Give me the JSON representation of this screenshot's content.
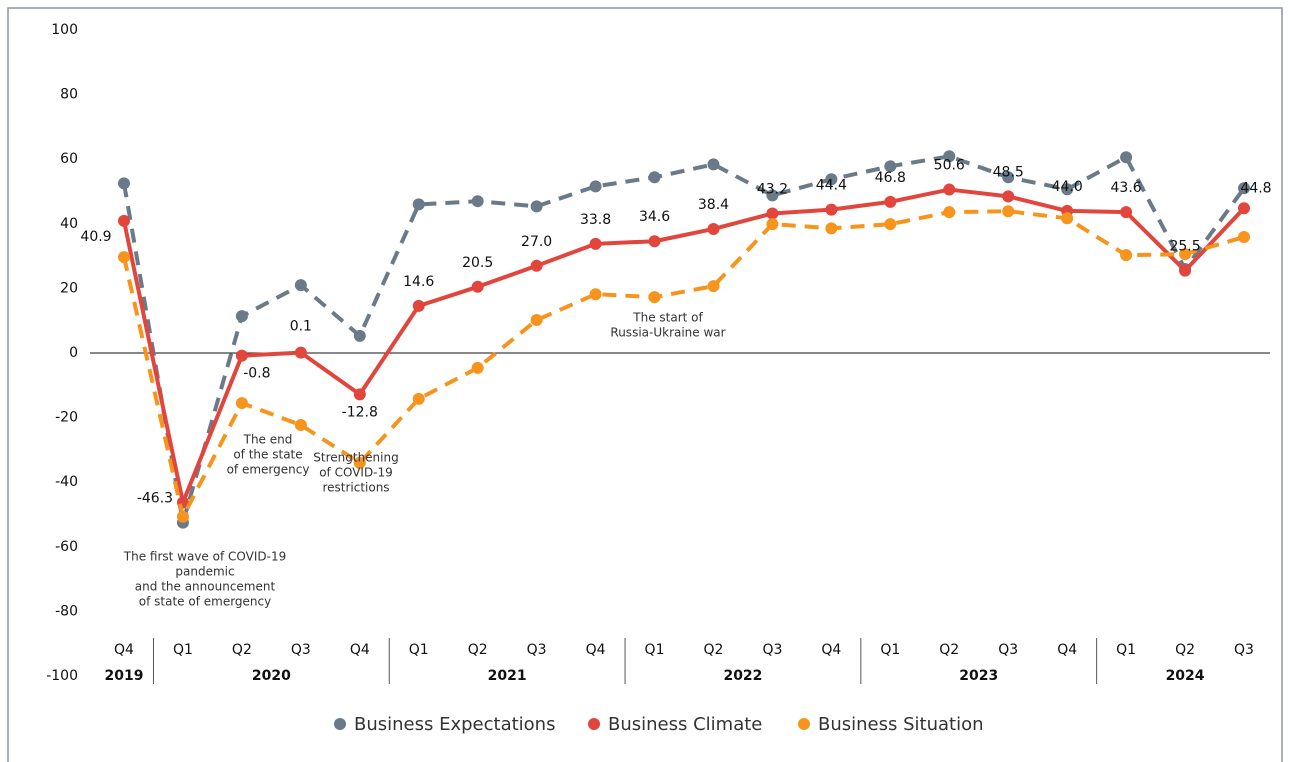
{
  "chart_data": {
    "type": "line",
    "categories": [
      "Q4",
      "Q1",
      "Q2",
      "Q3",
      "Q4",
      "Q1",
      "Q2",
      "Q3",
      "Q4",
      "Q1",
      "Q2",
      "Q3",
      "Q4",
      "Q1",
      "Q2",
      "Q3",
      "Q4",
      "Q1",
      "Q2",
      "Q3"
    ],
    "groups": [
      {
        "name": "2019",
        "count": 1
      },
      {
        "name": "2020",
        "count": 4
      },
      {
        "name": "2021",
        "count": 4
      },
      {
        "name": "2022",
        "count": 4
      },
      {
        "name": "2023",
        "count": 4
      },
      {
        "name": "2024",
        "count": 3
      }
    ],
    "ylim": [
      -100,
      100
    ],
    "yticks": [
      -100,
      -80,
      -60,
      -40,
      -20,
      0,
      20,
      40,
      60,
      80,
      100
    ],
    "series": [
      {
        "name": "Business Expectations",
        "color": "#6b7a89",
        "dashed": true,
        "values": [
          52.5,
          -52.5,
          11.4,
          21,
          5.3,
          46,
          47,
          45.4,
          51.6,
          54.4,
          58.4,
          48.8,
          53.8,
          57.8,
          60.9,
          54.4,
          50.7,
          60.6,
          26,
          51
        ]
      },
      {
        "name": "Business Climate",
        "color": "#e2453c",
        "dashed": false,
        "values": [
          40.9,
          -46.3,
          -0.8,
          0.1,
          -12.8,
          14.6,
          20.5,
          27.0,
          33.8,
          34.6,
          38.4,
          43.2,
          44.4,
          46.8,
          50.6,
          48.5,
          44.0,
          43.6,
          25.5,
          44.8
        ],
        "value_labels": [
          "40.9",
          "-46.3",
          "-0.8",
          "0.1",
          "-12.8",
          "14.6",
          "20.5",
          "27.0",
          "33.8",
          "34.6",
          "38.4",
          "43.2",
          "44.4",
          "46.8",
          "50.6",
          "48.5",
          "44.0",
          "43.6",
          "25.5",
          "44.8"
        ]
      },
      {
        "name": "Business Situation",
        "color": "#f7941d",
        "dashed": true,
        "values": [
          29.7,
          -50.7,
          -15.5,
          -22.3,
          -34,
          -14.2,
          -4.6,
          10.2,
          18.2,
          17.3,
          20.7,
          39.9,
          38.6,
          39.9,
          43.6,
          43.9,
          41.7,
          30.3,
          30.6,
          35.9
        ]
      }
    ],
    "annotations": [
      {
        "lines": [
          "The first wave of COVID-19",
          "pandemic",
          "and the announcement",
          "of state of emergency"
        ]
      },
      {
        "lines": [
          "The end",
          "of the state",
          "of emergency"
        ]
      },
      {
        "lines": [
          "Strengthening",
          "of COVID-19",
          "restrictions"
        ]
      },
      {
        "lines": [
          "The start of",
          "Russia-Ukraine war"
        ]
      }
    ]
  }
}
